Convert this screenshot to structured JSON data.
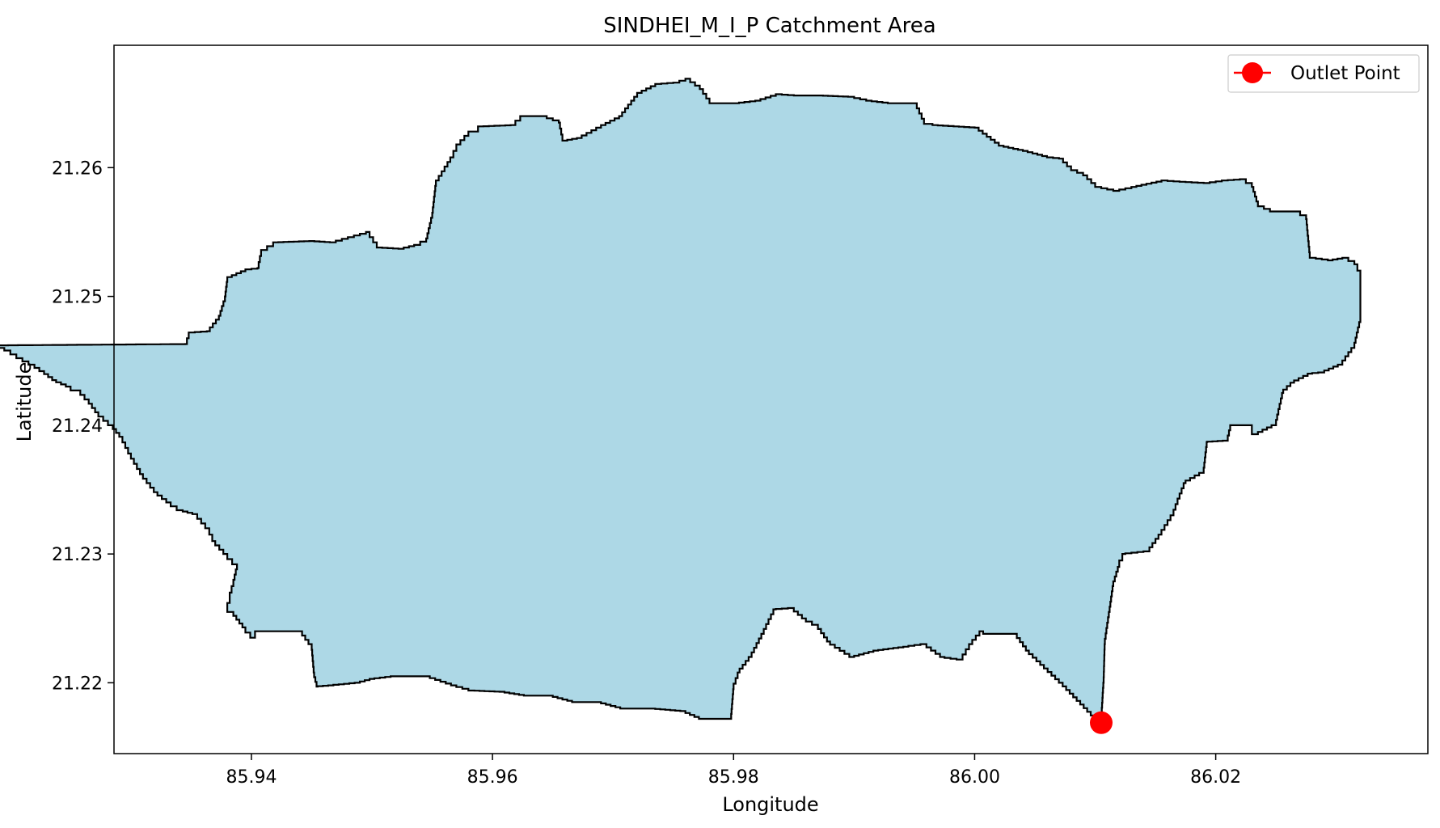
{
  "chart_data": {
    "type": "map",
    "title": "SINDHEI_M_I_P Catchment Area",
    "xlabel": "Longitude",
    "ylabel": "Latitude",
    "xlim": [
      85.9286,
      86.0376
    ],
    "ylim": [
      21.2145,
      21.2695
    ],
    "xticks": [
      85.94,
      85.96,
      85.98,
      86.0,
      86.02
    ],
    "xtick_labels": [
      "85.94",
      "85.96",
      "85.98",
      "86.00",
      "86.02"
    ],
    "yticks": [
      21.22,
      21.23,
      21.24,
      21.25,
      21.26
    ],
    "ytick_labels": [
      "21.22",
      "21.23",
      "21.24",
      "21.25",
      "21.26"
    ],
    "grid": false,
    "legend": {
      "placement": "top-right",
      "entries": [
        "Outlet Point"
      ]
    },
    "colors": {
      "fill": "#add8e6",
      "edge": "#000000",
      "outlet": "#ff0000"
    },
    "outlet": {
      "lon": 86.0105,
      "lat": 21.2169,
      "label": "Outlet Point"
    },
    "boundary": [
      [
        85.9345,
        21.2463
      ],
      [
        85.9348,
        21.2472
      ],
      [
        85.9363,
        21.2473
      ],
      [
        85.9373,
        21.2485
      ],
      [
        85.9378,
        21.25
      ],
      [
        85.938,
        21.2515
      ],
      [
        85.9395,
        21.2521
      ],
      [
        85.9405,
        21.2522
      ],
      [
        85.9408,
        21.2536
      ],
      [
        85.9418,
        21.2542
      ],
      [
        85.9448,
        21.2543
      ],
      [
        85.9465,
        21.2542
      ],
      [
        85.948,
        21.2546
      ],
      [
        85.9495,
        21.255
      ],
      [
        85.9504,
        21.2538
      ],
      [
        85.9522,
        21.2537
      ],
      [
        85.9535,
        21.254
      ],
      [
        85.9545,
        21.2545
      ],
      [
        85.955,
        21.2565
      ],
      [
        85.9553,
        21.259
      ],
      [
        85.9565,
        21.2608
      ],
      [
        85.957,
        21.2618
      ],
      [
        85.958,
        21.2628
      ],
      [
        85.9588,
        21.2632
      ],
      [
        85.9615,
        21.2633
      ],
      [
        85.9623,
        21.264
      ],
      [
        85.964,
        21.264
      ],
      [
        85.9655,
        21.2635
      ],
      [
        85.9658,
        21.2621
      ],
      [
        85.967,
        21.2623
      ],
      [
        85.969,
        21.2633
      ],
      [
        85.9705,
        21.264
      ],
      [
        85.972,
        21.2658
      ],
      [
        85.9735,
        21.2665
      ],
      [
        85.975,
        21.2666
      ],
      [
        85.976,
        21.2669
      ],
      [
        85.9772,
        21.2661
      ],
      [
        85.978,
        21.265
      ],
      [
        85.98,
        21.265
      ],
      [
        85.9818,
        21.2652
      ],
      [
        85.9835,
        21.2657
      ],
      [
        85.985,
        21.2656
      ],
      [
        85.987,
        21.2656
      ],
      [
        85.9895,
        21.2655
      ],
      [
        85.991,
        21.2652
      ],
      [
        85.9928,
        21.265
      ],
      [
        85.995,
        21.265
      ],
      [
        85.9958,
        21.2634
      ],
      [
        85.9965,
        21.2633
      ],
      [
        86.0,
        21.2631
      ],
      [
        86.002,
        21.2617
      ],
      [
        86.004,
        21.2613
      ],
      [
        86.006,
        21.2608
      ],
      [
        86.007,
        21.2607
      ],
      [
        86.008,
        21.2598
      ],
      [
        86.009,
        21.2594
      ],
      [
        86.01,
        21.2585
      ],
      [
        86.0115,
        21.2582
      ],
      [
        86.013,
        21.2585
      ],
      [
        86.0155,
        21.259
      ],
      [
        86.017,
        21.2589
      ],
      [
        86.019,
        21.2588
      ],
      [
        86.0205,
        21.259
      ],
      [
        86.022,
        21.2591
      ],
      [
        86.023,
        21.2585
      ],
      [
        86.0235,
        21.257
      ],
      [
        86.0245,
        21.2566
      ],
      [
        86.0265,
        21.2566
      ],
      [
        86.0275,
        21.256
      ],
      [
        86.0278,
        21.253
      ],
      [
        86.0293,
        21.2528
      ],
      [
        86.0305,
        21.253
      ],
      [
        86.0315,
        21.2525
      ],
      [
        86.032,
        21.2515
      ],
      [
        86.032,
        21.248
      ],
      [
        86.0315,
        21.246
      ],
      [
        86.0305,
        21.2447
      ],
      [
        86.029,
        21.2441
      ],
      [
        86.028,
        21.244
      ],
      [
        86.0265,
        21.2433
      ],
      [
        86.0256,
        21.2425
      ],
      [
        86.025,
        21.24
      ],
      [
        86.0235,
        21.2393
      ],
      [
        86.023,
        21.24
      ],
      [
        86.0213,
        21.24
      ],
      [
        86.021,
        21.2388
      ],
      [
        86.0193,
        21.2387
      ],
      [
        86.019,
        21.2363
      ],
      [
        86.0175,
        21.2355
      ],
      [
        86.017,
        21.2343
      ],
      [
        86.0165,
        21.233
      ],
      [
        86.0155,
        21.2315
      ],
      [
        86.0145,
        21.2302
      ],
      [
        86.0125,
        21.23
      ],
      [
        86.012,
        21.229
      ],
      [
        86.0115,
        21.2275
      ],
      [
        86.0112,
        21.2255
      ],
      [
        86.0108,
        21.223
      ],
      [
        86.0107,
        21.22
      ],
      [
        86.0105,
        21.2169
      ],
      [
        86.0073,
        21.22
      ],
      [
        86.0045,
        21.2225
      ],
      [
        86.0035,
        21.2238
      ],
      [
        86.0015,
        21.2238
      ],
      [
        86.0007,
        21.224
      ],
      [
        85.9998,
        21.223
      ],
      [
        85.999,
        21.2218
      ],
      [
        85.9975,
        21.222
      ],
      [
        85.996,
        21.223
      ],
      [
        85.9945,
        21.2228
      ],
      [
        85.992,
        21.2225
      ],
      [
        85.99,
        21.222
      ],
      [
        85.988,
        21.2232
      ],
      [
        85.987,
        21.2245
      ],
      [
        85.986,
        21.225
      ],
      [
        85.985,
        21.2258
      ],
      [
        85.9835,
        21.2257
      ],
      [
        85.9825,
        21.2238
      ],
      [
        85.9815,
        21.222
      ],
      [
        85.9805,
        21.2208
      ],
      [
        85.98,
        21.2195
      ],
      [
        85.9798,
        21.2172
      ],
      [
        85.9785,
        21.2172
      ],
      [
        85.9775,
        21.2172
      ],
      [
        85.976,
        21.2178
      ],
      [
        85.9735,
        21.218
      ],
      [
        85.971,
        21.218
      ],
      [
        85.969,
        21.2185
      ],
      [
        85.967,
        21.2185
      ],
      [
        85.965,
        21.219
      ],
      [
        85.963,
        21.219
      ],
      [
        85.961,
        21.2193
      ],
      [
        85.9585,
        21.2194
      ],
      [
        85.957,
        21.2198
      ],
      [
        85.9548,
        21.2205
      ],
      [
        85.952,
        21.2205
      ],
      [
        85.9502,
        21.2203
      ],
      [
        85.949,
        21.22
      ],
      [
        85.9468,
        21.2198
      ],
      [
        85.9455,
        21.2197
      ],
      [
        85.9452,
        21.2208
      ],
      [
        85.945,
        21.223
      ],
      [
        85.9442,
        21.224
      ],
      [
        85.9425,
        21.224
      ],
      [
        85.941,
        21.224
      ],
      [
        85.9403,
        21.2235
      ],
      [
        85.9395,
        21.2243
      ],
      [
        85.9385,
        21.2255
      ],
      [
        85.938,
        21.2262
      ],
      [
        85.9382,
        21.227
      ],
      [
        85.9385,
        21.228
      ],
      [
        85.9388,
        21.2292
      ],
      [
        85.938,
        21.23
      ],
      [
        85.937,
        21.231
      ],
      [
        85.9365,
        21.232
      ],
      [
        85.9355,
        21.2331
      ],
      [
        85.9343,
        21.2334
      ],
      [
        85.9333,
        21.234
      ],
      [
        85.9322,
        21.2348
      ],
      [
        85.931,
        21.2362
      ],
      [
        85.93,
        21.2378
      ],
      [
        85.9293,
        21.2391
      ],
      [
        85.9285,
        21.24
      ],
      [
        85.9273,
        21.241
      ],
      [
        85.9265,
        21.242
      ],
      [
        85.9258,
        21.2427
      ],
      [
        85.925,
        21.243
      ],
      [
        85.9238,
        21.2435
      ],
      [
        85.9228,
        21.2442
      ],
      [
        85.922,
        21.2447
      ],
      [
        85.921,
        21.2452
      ],
      [
        85.92,
        21.2458
      ],
      [
        85.919,
        21.2462
      ],
      [
        85.9345,
        21.2463
      ]
    ]
  }
}
